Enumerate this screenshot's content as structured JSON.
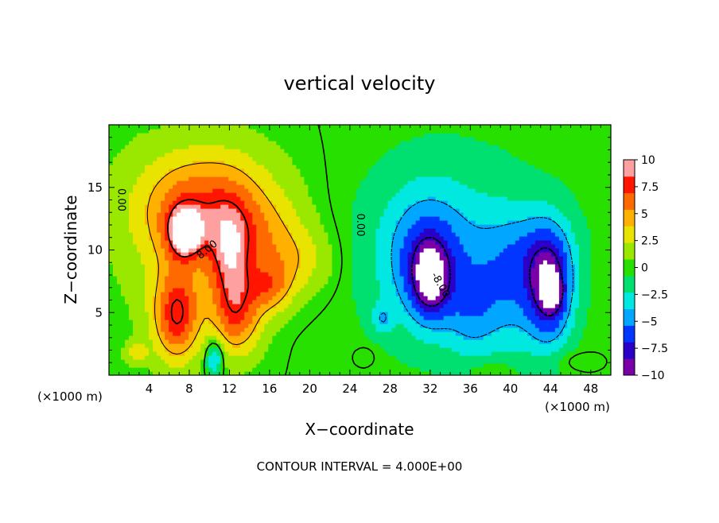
{
  "chart_data": {
    "type": "heatmap",
    "title": "vertical velocity",
    "xlabel": "X−coordinate",
    "ylabel": "Z−coordinate",
    "x_unit_left": "(×1000 m)",
    "x_unit_right": "(×1000 m)",
    "footer": "CONTOUR INTERVAL = 4.000E+00",
    "xlim": [
      0,
      50
    ],
    "ylim": [
      0,
      20
    ],
    "x_ticks": [
      4,
      8,
      12,
      16,
      20,
      24,
      28,
      32,
      36,
      40,
      44,
      48
    ],
    "x_tick_labels": [
      "4",
      "8",
      "12",
      "16",
      "20",
      "24",
      "28",
      "32",
      "36",
      "40",
      "44",
      "48"
    ],
    "y_ticks": [
      5,
      10,
      15
    ],
    "y_tick_labels": [
      "5",
      "10",
      "15"
    ],
    "colorbar": {
      "range": [
        -10,
        10
      ],
      "ticks": [
        10,
        7.5,
        5,
        2.5,
        0,
        -2.5,
        -5,
        -7.5,
        -10
      ],
      "tick_labels": [
        "10",
        "7.5",
        "5",
        "2.5",
        "0",
        "−2.5",
        "−5",
        "−7.5",
        "−10"
      ],
      "colors": [
        "#7a00a8",
        "#2a00c8",
        "#0036ff",
        "#00a6ff",
        "#00e8e0",
        "#00e070",
        "#28e000",
        "#9ae800",
        "#e8e400",
        "#ffb000",
        "#ff6a00",
        "#ff1500",
        "#ffa0a0"
      ]
    },
    "contour_labels": [
      {
        "text": "0.00",
        "x": 1.2,
        "y": 14.0,
        "rotate": 90
      },
      {
        "text": "8.00",
        "x": 9.8,
        "y": 10.0,
        "rotate": -40
      },
      {
        "text": "0.00",
        "x": 25.0,
        "y": 12.0,
        "rotate": 90
      },
      {
        "text": "-8.00",
        "x": 33.0,
        "y": 7.2,
        "rotate": 60
      }
    ],
    "blobs": [
      {
        "x": 10,
        "y": 14,
        "sx": 4.8,
        "sy": 3.2,
        "a": 5.5
      },
      {
        "x": 15,
        "y": 11,
        "sx": 3.2,
        "sy": 2.4,
        "a": 3.0
      },
      {
        "x": 19,
        "y": 9,
        "sx": 2.6,
        "sy": 2.0,
        "a": 2.5
      },
      {
        "x": 7,
        "y": 11.5,
        "sx": 2.6,
        "sy": 3.0,
        "a": 2.5
      },
      {
        "x": 7.6,
        "y": 11.4,
        "sx": 1.2,
        "sy": 1.4,
        "a": 6.5
      },
      {
        "x": 12.0,
        "y": 8.5,
        "sx": 1.6,
        "sy": 3.4,
        "a": 6.0
      },
      {
        "x": 6.8,
        "y": 4.8,
        "sx": 1.7,
        "sy": 2.6,
        "a": 8.0
      },
      {
        "x": 13.0,
        "y": 4.5,
        "sx": 1.8,
        "sy": 2.2,
        "a": 4.5
      },
      {
        "x": 16.0,
        "y": 7.0,
        "sx": 1.6,
        "sy": 1.5,
        "a": 4.5
      },
      {
        "x": 2.5,
        "y": 10,
        "sx": 2.5,
        "sy": 6,
        "a": 0.8
      },
      {
        "x": 2.8,
        "y": 1.8,
        "sx": 0.8,
        "sy": 0.6,
        "a": 3.0
      },
      {
        "x": 10.5,
        "y": 1.4,
        "sx": 0.6,
        "sy": 1.0,
        "a": -5.0
      },
      {
        "x": 34,
        "y": 10,
        "sx": 6.5,
        "sy": 5.5,
        "a": -3.0
      },
      {
        "x": 31.5,
        "y": 9.5,
        "sx": 2.8,
        "sy": 3.5,
        "a": -4.0
      },
      {
        "x": 32.0,
        "y": 7.5,
        "sx": 1.4,
        "sy": 2.2,
        "a": -5.5
      },
      {
        "x": 36,
        "y": 4.5,
        "sx": 1.8,
        "sy": 2.5,
        "a": -2.0
      },
      {
        "x": 40,
        "y": 6,
        "sx": 3.0,
        "sy": 3.5,
        "a": -2.8
      },
      {
        "x": 42,
        "y": 10,
        "sx": 3.0,
        "sy": 2.6,
        "a": -2.5
      },
      {
        "x": 44.0,
        "y": 7.0,
        "sx": 1.6,
        "sy": 3.2,
        "a": -7.0
      },
      {
        "x": 44.2,
        "y": 6.5,
        "sx": 0.7,
        "sy": 1.0,
        "a": -3.0
      },
      {
        "x": 27.2,
        "y": 4.5,
        "sx": 0.7,
        "sy": 0.8,
        "a": -2.8
      },
      {
        "x": 25.5,
        "y": 1.5,
        "sx": 0.8,
        "sy": 0.6,
        "a": 1.0
      },
      {
        "x": 46,
        "y": 1.2,
        "sx": 1.5,
        "sy": 0.6,
        "a": 1.0
      },
      {
        "x": 38.0,
        "y": 0.6,
        "sx": 2.0,
        "sy": 0.6,
        "a": 1.2
      }
    ]
  }
}
